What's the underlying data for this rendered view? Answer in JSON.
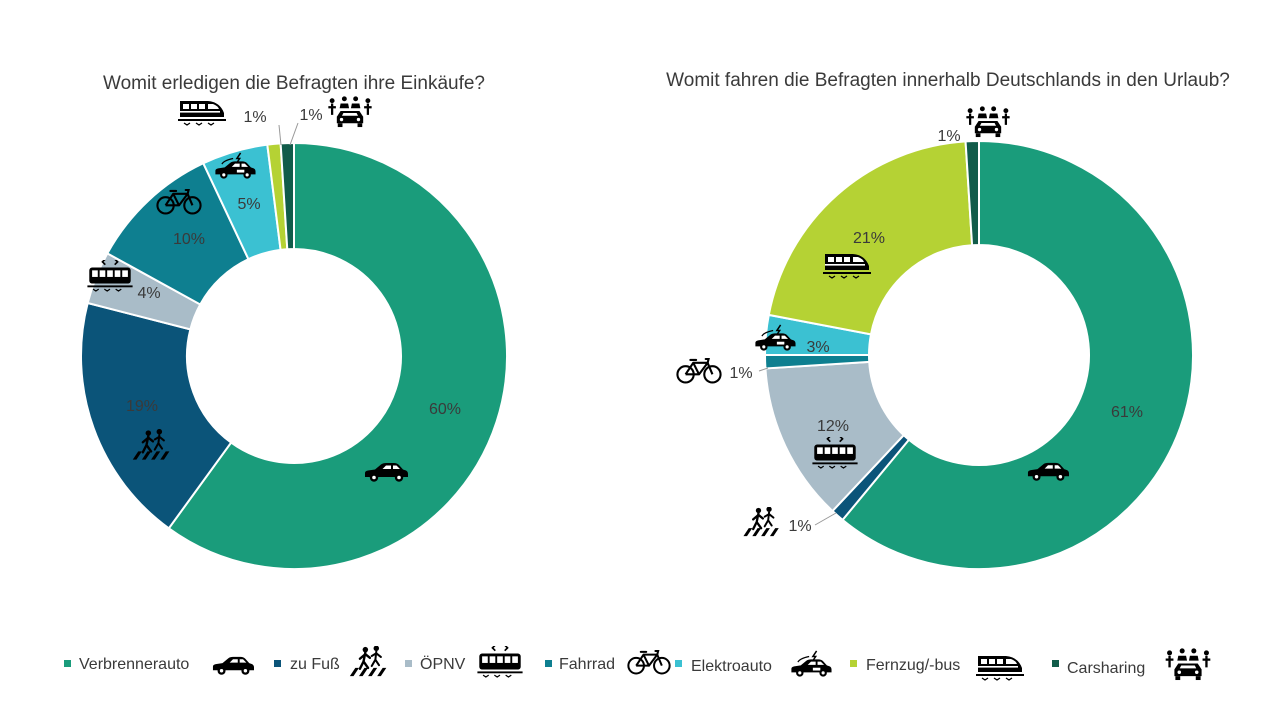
{
  "colors": {
    "Verbrennerauto": "#1a9c7b",
    "zu Fuß": "#0b5479",
    "ÖPNV": "#a9bcc8",
    "Fahrrad": "#0e7f90",
    "Elektroauto": "#3bc1d2",
    "Fernzug/-bus": "#b5d234",
    "Carsharing": "#115c4a"
  },
  "icons": {
    "Verbrennerauto": "car-icon",
    "zu Fuß": "pedestrian-crossing-icon",
    "ÖPNV": "tram-icon",
    "Fahrrad": "bicycle-icon",
    "Elektroauto": "electric-car-icon",
    "Fernzug/-bus": "train-icon",
    "Carsharing": "carsharing-icon"
  },
  "chart_data": [
    {
      "type": "donut",
      "title": "Womit erledigen die Befragten ihre Einkäufe?",
      "series": [
        {
          "name": "Verbrennerauto",
          "value": 60,
          "label": "60%"
        },
        {
          "name": "zu Fuß",
          "value": 19,
          "label": "19%"
        },
        {
          "name": "ÖPNV",
          "value": 4,
          "label": "4%"
        },
        {
          "name": "Fahrrad",
          "value": 10,
          "label": "10%"
        },
        {
          "name": "Elektroauto",
          "value": 5,
          "label": "5%"
        },
        {
          "name": "Fernzug/-bus",
          "value": 1,
          "label": "1%"
        },
        {
          "name": "Carsharing",
          "value": 1,
          "label": "1%"
        }
      ]
    },
    {
      "type": "donut",
      "title": "Womit fahren die Befragten innerhalb Deutschlands in den Urlaub?",
      "series": [
        {
          "name": "Verbrennerauto",
          "value": 61,
          "label": "61%"
        },
        {
          "name": "zu Fuß",
          "value": 1,
          "label": "1%"
        },
        {
          "name": "ÖPNV",
          "value": 12,
          "label": "12%"
        },
        {
          "name": "Fahrrad",
          "value": 1,
          "label": "1%"
        },
        {
          "name": "Elektroauto",
          "value": 3,
          "label": "3%"
        },
        {
          "name": "Fernzug/-bus",
          "value": 21,
          "label": "21%"
        },
        {
          "name": "Carsharing",
          "value": 1,
          "label": "1%"
        }
      ]
    }
  ],
  "legend": [
    "Verbrennerauto",
    "zu Fuß",
    "ÖPNV",
    "Fahrrad",
    "Elektroauto",
    "Fernzug/-bus",
    "Carsharing"
  ]
}
